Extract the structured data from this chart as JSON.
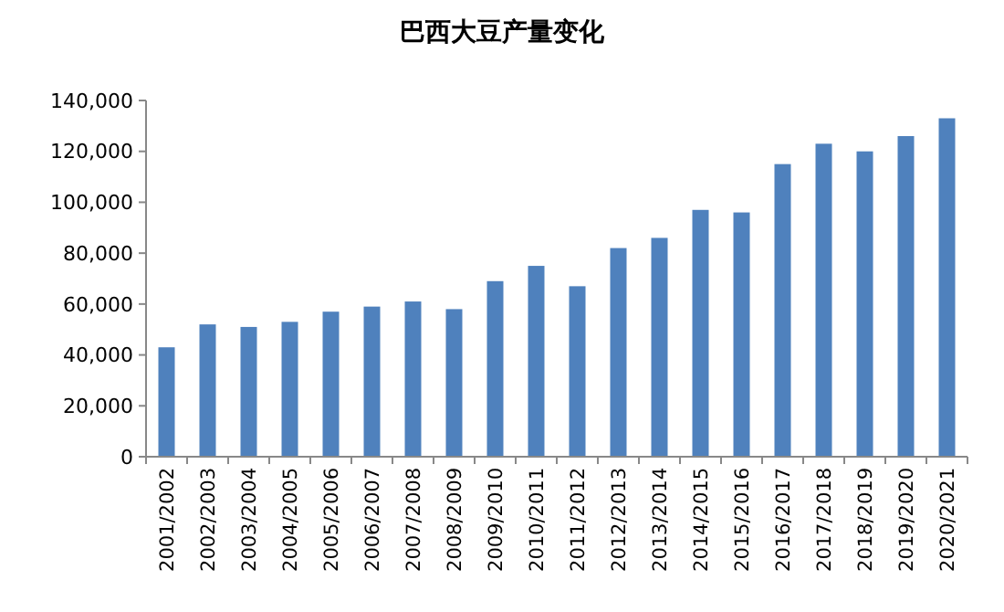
{
  "chart_data": {
    "type": "bar",
    "title": "巴西大豆产量变化",
    "categories": [
      "2001/2002",
      "2002/2003",
      "2003/2004",
      "2004/2005",
      "2005/2006",
      "2006/2007",
      "2007/2008",
      "2008/2009",
      "2009/2010",
      "2010/2011",
      "2011/2012",
      "2012/2013",
      "2013/2014",
      "2014/2015",
      "2015/2016",
      "2016/2017",
      "2017/2018",
      "2018/2019",
      "2019/2020",
      "2020/2021"
    ],
    "values": [
      43000,
      52000,
      51000,
      53000,
      57000,
      59000,
      61000,
      58000,
      69000,
      75000,
      67000,
      82000,
      86000,
      97000,
      96000,
      115000,
      123000,
      120000,
      126000,
      133000
    ],
    "color": "#4f81bd",
    "ylim": [
      0,
      140000
    ],
    "yticks": [
      {
        "value": 0,
        "label": "0"
      },
      {
        "value": 20000,
        "label": "20,000"
      },
      {
        "value": 40000,
        "label": "40,000"
      },
      {
        "value": 60000,
        "label": "60,000"
      },
      {
        "value": 80000,
        "label": "80,000"
      },
      {
        "value": 100000,
        "label": "100,000"
      },
      {
        "value": 120000,
        "label": "120,000"
      },
      {
        "value": 140000,
        "label": "140,000"
      }
    ],
    "grid": false
  }
}
